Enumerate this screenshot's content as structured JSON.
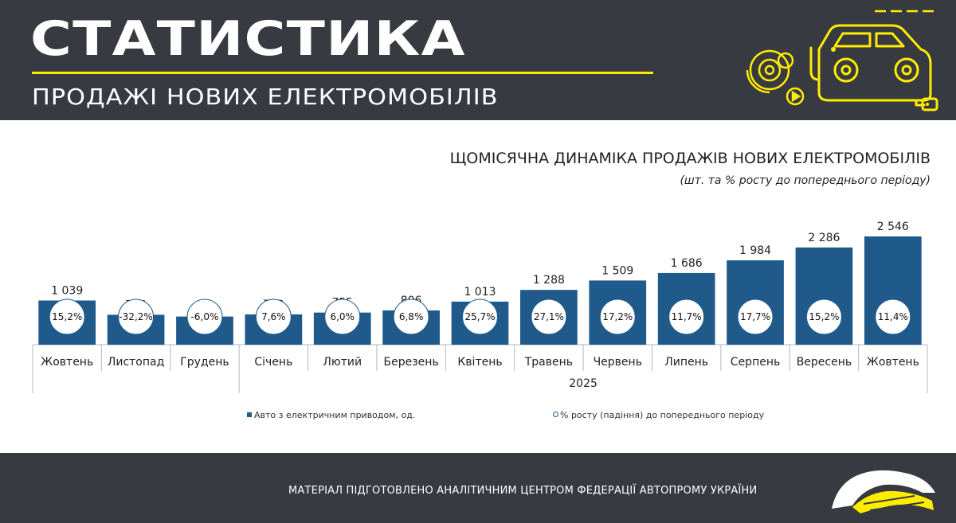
{
  "header": {
    "title": "СТАТИСТИКА",
    "subtitle": "ПРОДАЖІ НОВИХ ЕЛЕКТРОМОБІЛІВ"
  },
  "chart": {
    "title": "ЩОМІСЯЧНА ДИНАМІКА ПРОДАЖІВ НОВИХ ЕЛЕКТРОМОБІЛІВ",
    "subtitle": "(шт. та % росту до попереднього періоду)"
  },
  "legend": {
    "bars_label": "Авто з електричним приводом, од.",
    "growth_label": "% росту (падіння) до попереднього періоду"
  },
  "footer": {
    "text": "МАТЕРІАЛ ПІДГОТОВЛЕНО АНАЛІТИЧНИМ ЦЕНТРОМ ФЕДЕРАЦІЇ АВТОПРОМУ УКРАЇНИ"
  },
  "colors": {
    "bar": "#1f5a8a",
    "header_bg": "#373a41",
    "accent": "#ffec00"
  },
  "chart_data": {
    "type": "bar",
    "title": "ЩОМІСЯЧНА ДИНАМІКА ПРОДАЖІВ НОВИХ ЕЛЕКТРОМОБІЛІВ",
    "subtitle": "(шт. та % росту до попереднього періоду)",
    "categories": [
      "Жовтень",
      "Листопад",
      "Грудень",
      "Січень",
      "Лютий",
      "Березень",
      "Квітень",
      "Травень",
      "Червень",
      "Липень",
      "Серпень",
      "Вересень",
      "Жовтень"
    ],
    "group_labels": [
      "",
      "2025"
    ],
    "group_start_index": [
      0,
      3
    ],
    "series": [
      {
        "name": "Авто з електричним приводом, од.",
        "values": [
          1039,
          704,
          662,
          712,
          755,
          806,
          1013,
          1288,
          1509,
          1686,
          1984,
          2286,
          2546
        ],
        "value_labels": [
          "1 039",
          "704",
          "662",
          "712",
          "755",
          "806",
          "1 013",
          "1 288",
          "1 509",
          "1 686",
          "1 984",
          "2 286",
          "2 546"
        ]
      },
      {
        "name": "% росту (падіння) до попереднього періоду",
        "values": [
          15.2,
          -32.2,
          -6.0,
          7.6,
          6.0,
          6.8,
          25.7,
          27.1,
          17.2,
          11.7,
          17.7,
          15.2,
          11.4
        ],
        "value_labels": [
          "15,2%",
          "-32,2%",
          "-6,0%",
          "7,6%",
          "6,0%",
          "6,8%",
          "25,7%",
          "27,1%",
          "17,2%",
          "11,7%",
          "17,7%",
          "15,2%",
          "11,4%"
        ]
      }
    ],
    "legend": "bottom",
    "grid": false
  }
}
